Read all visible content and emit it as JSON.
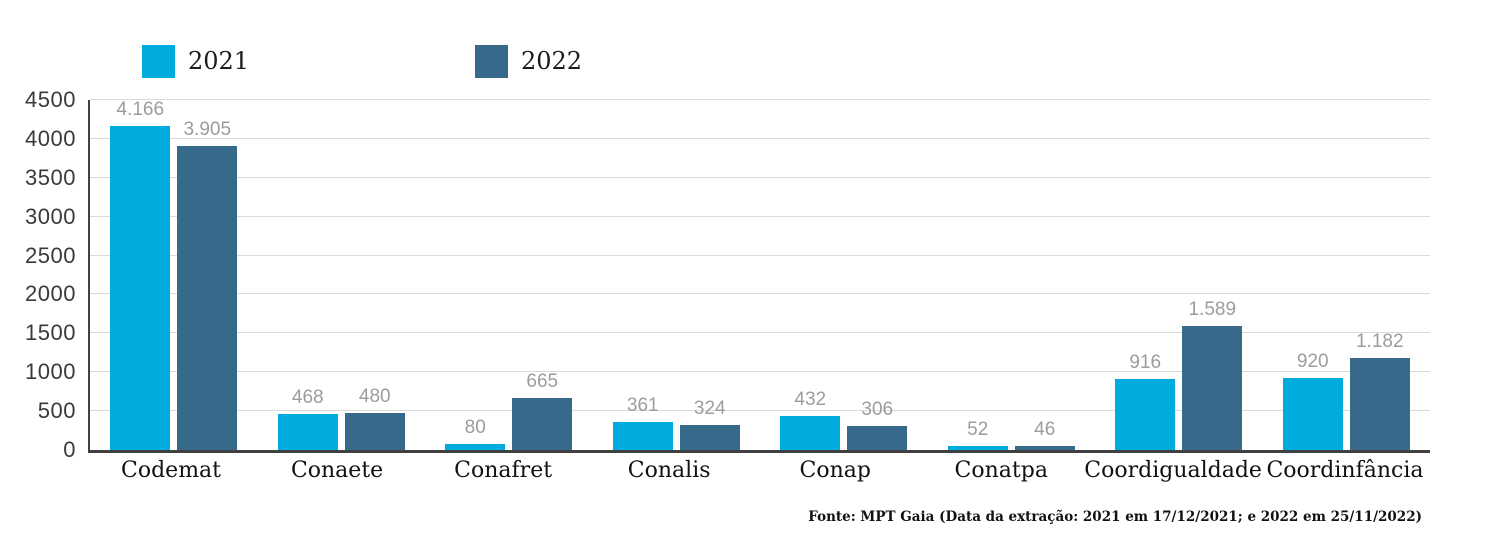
{
  "legend": {
    "items": [
      {
        "label": "2021",
        "color": "#00ABDE"
      },
      {
        "label": "2022",
        "color": "#37698A"
      }
    ]
  },
  "chart_data": {
    "type": "bar",
    "title": "",
    "xlabel": "",
    "ylabel": "",
    "categories": [
      "Codemat",
      "Conaete",
      "Conafret",
      "Conalis",
      "Conap",
      "Conatpa",
      "Coordigualdade",
      "Coordinfância"
    ],
    "series": [
      {
        "name": "2021",
        "color": "#00ABDE",
        "values": [
          4166,
          468,
          80,
          361,
          432,
          52,
          916,
          920
        ],
        "labels": [
          "4.166",
          "468",
          "80",
          "361",
          "432",
          "52",
          "916",
          "920"
        ]
      },
      {
        "name": "2022",
        "color": "#37698A",
        "values": [
          3905,
          480,
          665,
          324,
          306,
          46,
          1589,
          1182
        ],
        "labels": [
          "3.905",
          "480",
          "665",
          "324",
          "306",
          "46",
          "1.589",
          "1.182"
        ]
      }
    ],
    "ylim": [
      0,
      4500
    ],
    "ytick_step": 500,
    "yticks": [
      "0",
      "500",
      "1000",
      "1500",
      "2000",
      "2500",
      "3000",
      "3500",
      "4000",
      "4500"
    ],
    "grid": true,
    "legend_position": "top-left"
  },
  "footer": {
    "text": "Fonte: MPT Gaia (Data da extração: 2021 em 17/12/2021; e 2022 em 25/11/2022)"
  }
}
